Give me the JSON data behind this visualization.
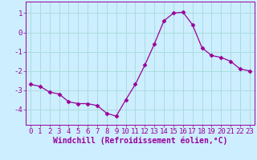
{
  "x": [
    0,
    1,
    2,
    3,
    4,
    5,
    6,
    7,
    8,
    9,
    10,
    11,
    12,
    13,
    14,
    15,
    16,
    17,
    18,
    19,
    20,
    21,
    22,
    23
  ],
  "y": [
    -2.7,
    -2.8,
    -3.1,
    -3.2,
    -3.6,
    -3.7,
    -3.7,
    -3.8,
    -4.2,
    -4.35,
    -3.5,
    -2.7,
    -1.7,
    -0.6,
    0.6,
    1.0,
    1.05,
    0.4,
    -0.8,
    -1.2,
    -1.3,
    -1.5,
    -1.9,
    -2.0
  ],
  "line_color": "#990099",
  "marker": "D",
  "marker_size": 2.5,
  "bg_color": "#cceeff",
  "grid_color": "#aadddd",
  "tick_color": "#990099",
  "xlabel": "Windchill (Refroidissement éolien,°C)",
  "xlabel_color": "#990099",
  "xlabel_fontsize": 7,
  "yticks": [
    -4,
    -3,
    -2,
    -1,
    0,
    1
  ],
  "xticks": [
    0,
    1,
    2,
    3,
    4,
    5,
    6,
    7,
    8,
    9,
    10,
    11,
    12,
    13,
    14,
    15,
    16,
    17,
    18,
    19,
    20,
    21,
    22,
    23
  ],
  "tick_fontsize": 6.5,
  "ylim": [
    -4.8,
    1.6
  ],
  "xlim": [
    -0.5,
    23.5
  ]
}
